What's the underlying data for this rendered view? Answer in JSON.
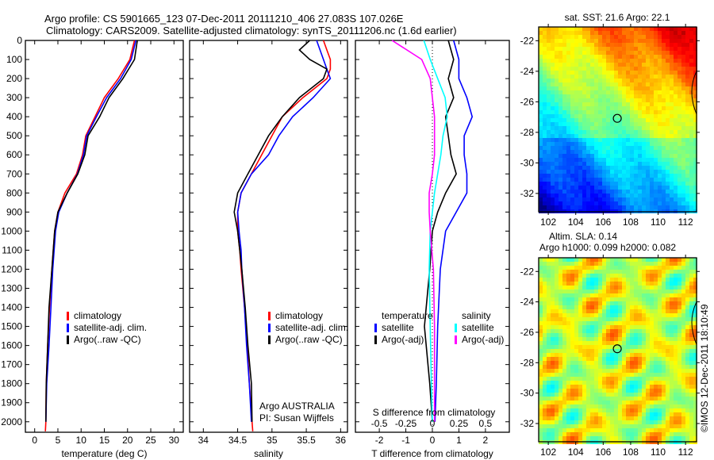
{
  "title": {
    "line1": "Argo profile: CS 5901665_123 07-Dec-2011 20111210_406 27.083S 107.026E",
    "line2": "Climatology: CARS2009. Satellite-adjusted climatology: synTS_20111206.nc (1.6d earlier)"
  },
  "credit": "©IMOS 12-Dec-2011 18:10:49",
  "chart_data": [
    {
      "type": "line",
      "name": "temperature-profile",
      "xlabel": "temperature (deg C)",
      "xlim": [
        -2,
        32
      ],
      "ylim": [
        2055,
        0
      ],
      "xticks": [
        0,
        5,
        10,
        15,
        20,
        25,
        30
      ],
      "yticks": [
        0,
        100,
        200,
        300,
        400,
        500,
        600,
        700,
        800,
        900,
        1000,
        1100,
        1200,
        1300,
        1400,
        1500,
        1600,
        1700,
        1800,
        1900,
        2000
      ],
      "depth": [
        0,
        100,
        200,
        300,
        400,
        500,
        600,
        700,
        800,
        900,
        1000,
        1200,
        1400,
        1600,
        1800,
        2000,
        2050
      ],
      "series": [
        {
          "name": "climatology",
          "color": "#ff0000",
          "values": [
            21.5,
            20.5,
            18,
            15,
            13,
            11,
            10.3,
            9,
            6.5,
            5,
            4.3,
            3.7,
            3.2,
            2.8,
            2.5,
            2.4,
            2.3
          ]
        },
        {
          "name": "satellite-adj. clim.",
          "color": "#0000ff",
          "values": [
            21.8,
            20.8,
            18.5,
            15.5,
            13.3,
            11.2,
            10.5,
            9.2,
            7,
            5.2,
            4.5,
            3.9,
            3.5,
            3.1,
            2.6,
            2.4,
            null
          ]
        },
        {
          "name": "Argo(..raw -QC)",
          "color": "#000000",
          "values": [
            22.1,
            21.5,
            19,
            16,
            14,
            11.5,
            10.8,
            9.3,
            7,
            5,
            4.3,
            3.7,
            3.1,
            2.8,
            2.5,
            2.4,
            null
          ]
        }
      ]
    },
    {
      "type": "line",
      "name": "salinity-profile",
      "xlabel": "salinity",
      "xlim": [
        33.8,
        36.1
      ],
      "ylim": [
        2055,
        0
      ],
      "xticks": [
        34,
        34.5,
        35,
        35.5,
        36
      ],
      "depth": [
        0,
        50,
        100,
        150,
        200,
        300,
        400,
        500,
        600,
        700,
        800,
        900,
        1000,
        1100,
        1200,
        1400,
        1600,
        1800,
        2000,
        2050
      ],
      "series": [
        {
          "name": "climatology",
          "color": "#ff0000",
          "values": [
            35.75,
            35.8,
            35.85,
            35.85,
            35.8,
            35.45,
            35.15,
            35.0,
            34.85,
            34.7,
            34.55,
            34.5,
            34.5,
            34.53,
            34.55,
            34.6,
            34.64,
            34.67,
            34.71,
            34.72
          ]
        },
        {
          "name": "satellite-adj. clim.",
          "color": "#0000ff",
          "values": [
            35.65,
            35.7,
            35.75,
            35.8,
            35.85,
            35.6,
            35.3,
            35.1,
            34.95,
            34.7,
            34.55,
            34.5,
            34.52,
            34.55,
            34.56,
            34.6,
            34.63,
            34.67,
            34.7,
            null
          ]
        },
        {
          "name": "Argo(..raw -QC)",
          "color": "#000000",
          "values": [
            35.55,
            35.4,
            35.55,
            35.8,
            35.75,
            35.4,
            35.15,
            34.95,
            34.8,
            34.65,
            34.5,
            34.45,
            34.5,
            34.53,
            34.56,
            34.61,
            34.65,
            34.7,
            34.71,
            null
          ]
        }
      ],
      "annotation": [
        "Argo AUSTRALIA",
        "PI: Susan Wijffels"
      ]
    },
    {
      "type": "line",
      "name": "difference-profile",
      "xlabel": "T difference from climatology",
      "x2label": "S difference from climatology",
      "xlim": [
        -2.9,
        2.9
      ],
      "x2lim": [
        -0.725,
        0.725
      ],
      "ylim": [
        2055,
        0
      ],
      "xticks": [
        -2,
        -1,
        0,
        1,
        2
      ],
      "x2ticks": [
        "-0.5",
        "-0.25",
        "0",
        "0.25",
        "0.5"
      ],
      "depth": [
        0,
        100,
        200,
        300,
        400,
        500,
        600,
        700,
        800,
        900,
        1000,
        1200,
        1500,
        1800,
        2000
      ],
      "legend_headers": {
        "temperature": "temperature",
        "salinity": "salinity"
      },
      "series": [
        {
          "name": "satellite",
          "group": "temperature",
          "axis": "T",
          "color": "#0000ff",
          "values": [
            0.8,
            1.0,
            1.0,
            1.3,
            1.5,
            1.2,
            1.2,
            1.3,
            1.3,
            0.9,
            0.5,
            0.3,
            0.2,
            0.15,
            0.1
          ]
        },
        {
          "name": "Argo(-adj)",
          "group": "temperature",
          "axis": "T",
          "color": "#000000",
          "values": [
            0.6,
            0.8,
            0.6,
            0.8,
            0.5,
            0.6,
            0.7,
            0.9,
            0.5,
            0.2,
            0,
            -0.1,
            -0.3,
            -0.1,
            0
          ]
        },
        {
          "name": "satellite",
          "group": "salinity",
          "axis": "S",
          "color": "#00ffff",
          "values": [
            -0.08,
            -0.02,
            0.05,
            0.12,
            0.14,
            0.1,
            0.08,
            0.05,
            0.02,
            0,
            -0.02,
            -0.03,
            -0.02,
            -0.01,
            0
          ]
        },
        {
          "name": "Argo(-adj)",
          "group": "salinity",
          "axis": "S",
          "color": "#ff00ff",
          "values": [
            -0.38,
            -0.1,
            -0.02,
            0,
            0.02,
            0.02,
            0.02,
            0,
            -0.03,
            -0.03,
            -0.02,
            0.01,
            0.02,
            0.02,
            0.02
          ]
        }
      ]
    },
    {
      "type": "heatmap",
      "name": "sst-map",
      "title": "sat. SST: 21.6 Argo: 22.1",
      "lonlim": [
        101.3,
        112.8
      ],
      "latlim": [
        -33.2,
        -21.1
      ],
      "xticks": [
        102,
        104,
        106,
        108,
        110,
        112
      ],
      "yticks": [
        -22,
        -24,
        -26,
        -28,
        -30,
        -32
      ],
      "marker": {
        "lon": 107.026,
        "lat": -27.083
      }
    },
    {
      "type": "heatmap",
      "name": "sla-map",
      "title1": "Altim. SLA: 0.14",
      "title2": "Argo h1000: 0.099 h2000: 0.082",
      "lonlim": [
        101.3,
        112.8
      ],
      "latlim": [
        -33.2,
        -21.1
      ],
      "xticks": [
        102,
        104,
        106,
        108,
        110,
        112
      ],
      "yticks": [
        -22,
        -24,
        -26,
        -28,
        -30,
        -32
      ],
      "marker": {
        "lon": 107.026,
        "lat": -27.083
      }
    }
  ]
}
